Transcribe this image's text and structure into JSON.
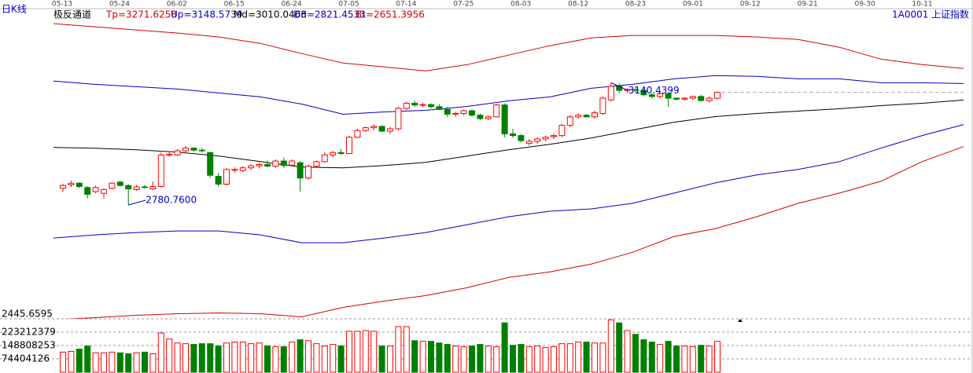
{
  "chart_data": {
    "type": "candlestick",
    "title": "日K线",
    "indicator": "极反通道",
    "code": "1A0001",
    "name": "上证指数",
    "dates": [
      "05-13",
      "05-24",
      "06-02",
      "06-15",
      "06-24",
      "07-05",
      "07-14",
      "07-25",
      "08-03",
      "08-12",
      "08-23",
      "09-01",
      "09-12",
      "09-21",
      "09-30",
      "10-11"
    ],
    "open": [
      2830,
      2840,
      2845,
      2832,
      2820,
      2815,
      2830,
      2848,
      2838,
      2826,
      2834,
      2828,
      2835,
      2928,
      2928,
      2940,
      2948,
      2942,
      2935,
      2865,
      2842,
      2885,
      2882,
      2890,
      2896,
      2900,
      2895,
      2910,
      2898,
      2905,
      2860,
      2895,
      2908,
      2928,
      2935,
      2932,
      2980,
      3000,
      3008,
      3012,
      2998,
      3005,
      3065,
      3080,
      3075,
      3076,
      3070,
      3062,
      3048,
      3050,
      3058,
      3045,
      3035,
      3040,
      3075,
      2990,
      2985,
      2962,
      2968,
      2975,
      2982,
      2985,
      3015,
      3040,
      3045,
      3040,
      3050,
      3090,
      3130,
      3118,
      3120,
      3118,
      3105,
      3100,
      3108,
      3095,
      3092,
      3095,
      3100,
      3088,
      3095
    ],
    "high": [
      2843,
      2852,
      2848,
      2836,
      2838,
      2830,
      2848,
      2852,
      2842,
      2840,
      2840,
      2850,
      2935,
      2935,
      2945,
      2955,
      2950,
      2948,
      2938,
      2875,
      2890,
      2892,
      2895,
      2900,
      2905,
      2912,
      2915,
      2920,
      2915,
      2910,
      2900,
      2912,
      2935,
      2940,
      2945,
      2985,
      3005,
      3012,
      3018,
      3015,
      3010,
      3070,
      3085,
      3088,
      3082,
      3080,
      3078,
      3070,
      3055,
      3062,
      3062,
      3050,
      3045,
      3078,
      3080,
      3005,
      2990,
      2975,
      2980,
      2985,
      2990,
      3020,
      3045,
      3050,
      3048,
      3058,
      3100,
      3140.4399,
      3138,
      3125,
      3128,
      3122,
      3110,
      3112,
      3112,
      3098,
      3098,
      3102,
      3105,
      3100,
      3115
    ],
    "low": [
      2820,
      2833,
      2830,
      2800,
      2815,
      2800,
      2826,
      2835,
      2780.76,
      2822,
      2828,
      2826,
      2832,
      2922,
      2925,
      2936,
      2938,
      2935,
      2860,
      2835,
      2838,
      2876,
      2878,
      2884,
      2888,
      2892,
      2890,
      2890,
      2895,
      2820,
      2855,
      2890,
      2905,
      2920,
      2928,
      2930,
      2978,
      2995,
      3000,
      2995,
      2990,
      3000,
      3060,
      3070,
      3068,
      3065,
      3060,
      3040,
      3040,
      3045,
      3040,
      3030,
      3030,
      3038,
      2980,
      2978,
      2965,
      2955,
      2960,
      2968,
      2975,
      2980,
      3010,
      3035,
      3038,
      3035,
      3045,
      3085,
      3110,
      3110,
      3112,
      3100,
      3095,
      3095,
      3070,
      3088,
      3088,
      3090,
      3085,
      3082,
      3092
    ],
    "close": [
      2838,
      2844,
      2835,
      2812,
      2832,
      2826,
      2845,
      2838,
      2828,
      2834,
      2832,
      2835,
      2928,
      2930,
      2940,
      2948,
      2942,
      2940,
      2868,
      2842,
      2885,
      2885,
      2890,
      2896,
      2900,
      2895,
      2910,
      2897,
      2910,
      2860,
      2895,
      2908,
      2928,
      2935,
      2932,
      2980,
      3000,
      3008,
      3012,
      2998,
      3005,
      3065,
      3080,
      3075,
      3076,
      3070,
      3062,
      3048,
      3050,
      3058,
      3045,
      3035,
      3040,
      3075,
      2990,
      2985,
      2970,
      2968,
      2975,
      2980,
      2985,
      3015,
      3040,
      3045,
      3040,
      3052,
      3095,
      3130,
      3118,
      3120,
      3118,
      3105,
      3100,
      3108,
      3095,
      3092,
      3095,
      3100,
      3088,
      3095,
      3112
    ],
    "volume": [
      112000000,
      116000000,
      129000000,
      146000000,
      108000000,
      108000000,
      112000000,
      108000000,
      103000000,
      108000000,
      112000000,
      103000000,
      219000000,
      185000000,
      163000000,
      159000000,
      155000000,
      159000000,
      159000000,
      146000000,
      163000000,
      168000000,
      168000000,
      159000000,
      163000000,
      146000000,
      142000000,
      142000000,
      168000000,
      181000000,
      176000000,
      159000000,
      146000000,
      155000000,
      146000000,
      228000000,
      228000000,
      232000000,
      228000000,
      146000000,
      146000000,
      254000000,
      254000000,
      176000000,
      172000000,
      172000000,
      163000000,
      155000000,
      146000000,
      142000000,
      146000000,
      155000000,
      146000000,
      142000000,
      275000000,
      150000000,
      155000000,
      142000000,
      146000000,
      138000000,
      142000000,
      159000000,
      159000000,
      168000000,
      168000000,
      163000000,
      163000000,
      292000000,
      275000000,
      232000000,
      211000000,
      181000000,
      168000000,
      155000000,
      172000000,
      146000000,
      146000000,
      142000000,
      150000000,
      146000000,
      172000000
    ],
    "up_color": "#ff0000",
    "down_color": "#008000",
    "bands": [
      {
        "name": "Tp=3271.6258",
        "color": "#d40000",
        "values": [
          3314.4,
          3305.2,
          3295.9,
          3286.6,
          3275.0,
          3256.4,
          3226.3,
          3198.4,
          3186.8,
          3175.2,
          3193.8,
          3221.6,
          3249.4,
          3272.6,
          3279.6,
          3279.6,
          3279.6,
          3275.0,
          3268.0,
          3244.8,
          3210.0,
          3193.8,
          3182.2
        ]
      },
      {
        "name": "Up=3148.5739",
        "color": "#0000c8",
        "values": [
          3145.1,
          3135.8,
          3128.8,
          3121.9,
          3110.3,
          3098.7,
          3077.8,
          3047.6,
          3054.6,
          3059.2,
          3070.8,
          3087.1,
          3098.7,
          3124.2,
          3135.8,
          3152.0,
          3161.3,
          3159.0,
          3152.0,
          3152.0,
          3140.4,
          3140.4,
          3138.1
        ]
      },
      {
        "name": "Md=3010.0468",
        "color": "#000000",
        "values": [
          2950.2,
          2947.9,
          2943.2,
          2936.3,
          2924.7,
          2908.4,
          2892.2,
          2889.9,
          2896.8,
          2906.1,
          2924.7,
          2943.2,
          2959.5,
          2978.0,
          3001.2,
          3024.4,
          3040.7,
          3050.0,
          3056.9,
          3063.9,
          3073.2,
          3080.1,
          3089.4
        ]
      },
      {
        "name": "Dn=2821.4533",
        "color": "#0000c8",
        "values": [
          2683.4,
          2692.7,
          2699.6,
          2704.3,
          2704.3,
          2692.7,
          2669.5,
          2669.5,
          2683.4,
          2699.6,
          2722.8,
          2746.0,
          2762.3,
          2769.2,
          2785.5,
          2815.6,
          2845.8,
          2869.0,
          2885.2,
          2908.4,
          2947.9,
          2985.0,
          3017.5
        ]
      },
      {
        "name": "Bt=2651.3956",
        "color": "#d40000",
        "values": [
          2443.0,
          2449.1,
          2456.0,
          2460.7,
          2463.0,
          2460.7,
          2451.4,
          2479.2,
          2497.8,
          2514.0,
          2537.2,
          2567.4,
          2583.6,
          2606.8,
          2641.6,
          2688.0,
          2711.2,
          2746.0,
          2785.5,
          2815.6,
          2850.4,
          2908.4,
          2952.5
        ]
      }
    ],
    "annotations": [
      {
        "value": 3140.4399,
        "label": "3140.4399"
      },
      {
        "value": 2780.76,
        "label": "2780.7600"
      }
    ],
    "ylim": [
      2445.6595,
      3356.2
    ],
    "yticks": [
      2445.6595
    ],
    "vol_ylim": [
      0,
      297616504
    ],
    "vol_yticks": [
      74404126,
      148808253,
      223212379
    ]
  }
}
